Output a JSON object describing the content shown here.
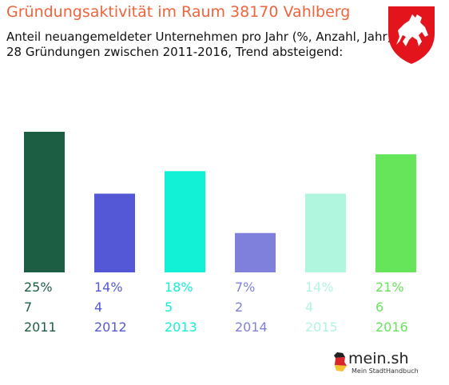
{
  "header": {
    "title": "Gründungsaktivität im Raum 38170 Vahlberg",
    "subtitle_line1": "Anteil neuangemeldeter Unternehmen pro Jahr (%, Anzahl, Jahr)",
    "subtitle_line2": "28 Gründungen zwischen 2011-2016, Trend absteigend:"
  },
  "logo": {
    "main": "mein.sh",
    "sub": "Mein StadtHandbuch"
  },
  "chart_data": {
    "type": "bar",
    "title": "Gründungsaktivität im Raum 38170 Vahlberg",
    "categories": [
      "2011",
      "2012",
      "2013",
      "2014",
      "2015",
      "2016"
    ],
    "values": [
      25,
      14,
      18,
      7,
      14,
      21
    ],
    "counts": [
      7,
      4,
      5,
      2,
      4,
      6
    ],
    "percent_labels": [
      "25%",
      "14%",
      "18%",
      "7%",
      "14%",
      "21%"
    ],
    "count_labels": [
      "7",
      "4",
      "5",
      "2",
      "4",
      "6"
    ],
    "colors": [
      "#1b5e43",
      "#5558d6",
      "#12f0d6",
      "#7f80db",
      "#b0f5de",
      "#66e45a"
    ],
    "ylim": [
      0,
      25
    ],
    "grid": false,
    "legend": "none"
  }
}
